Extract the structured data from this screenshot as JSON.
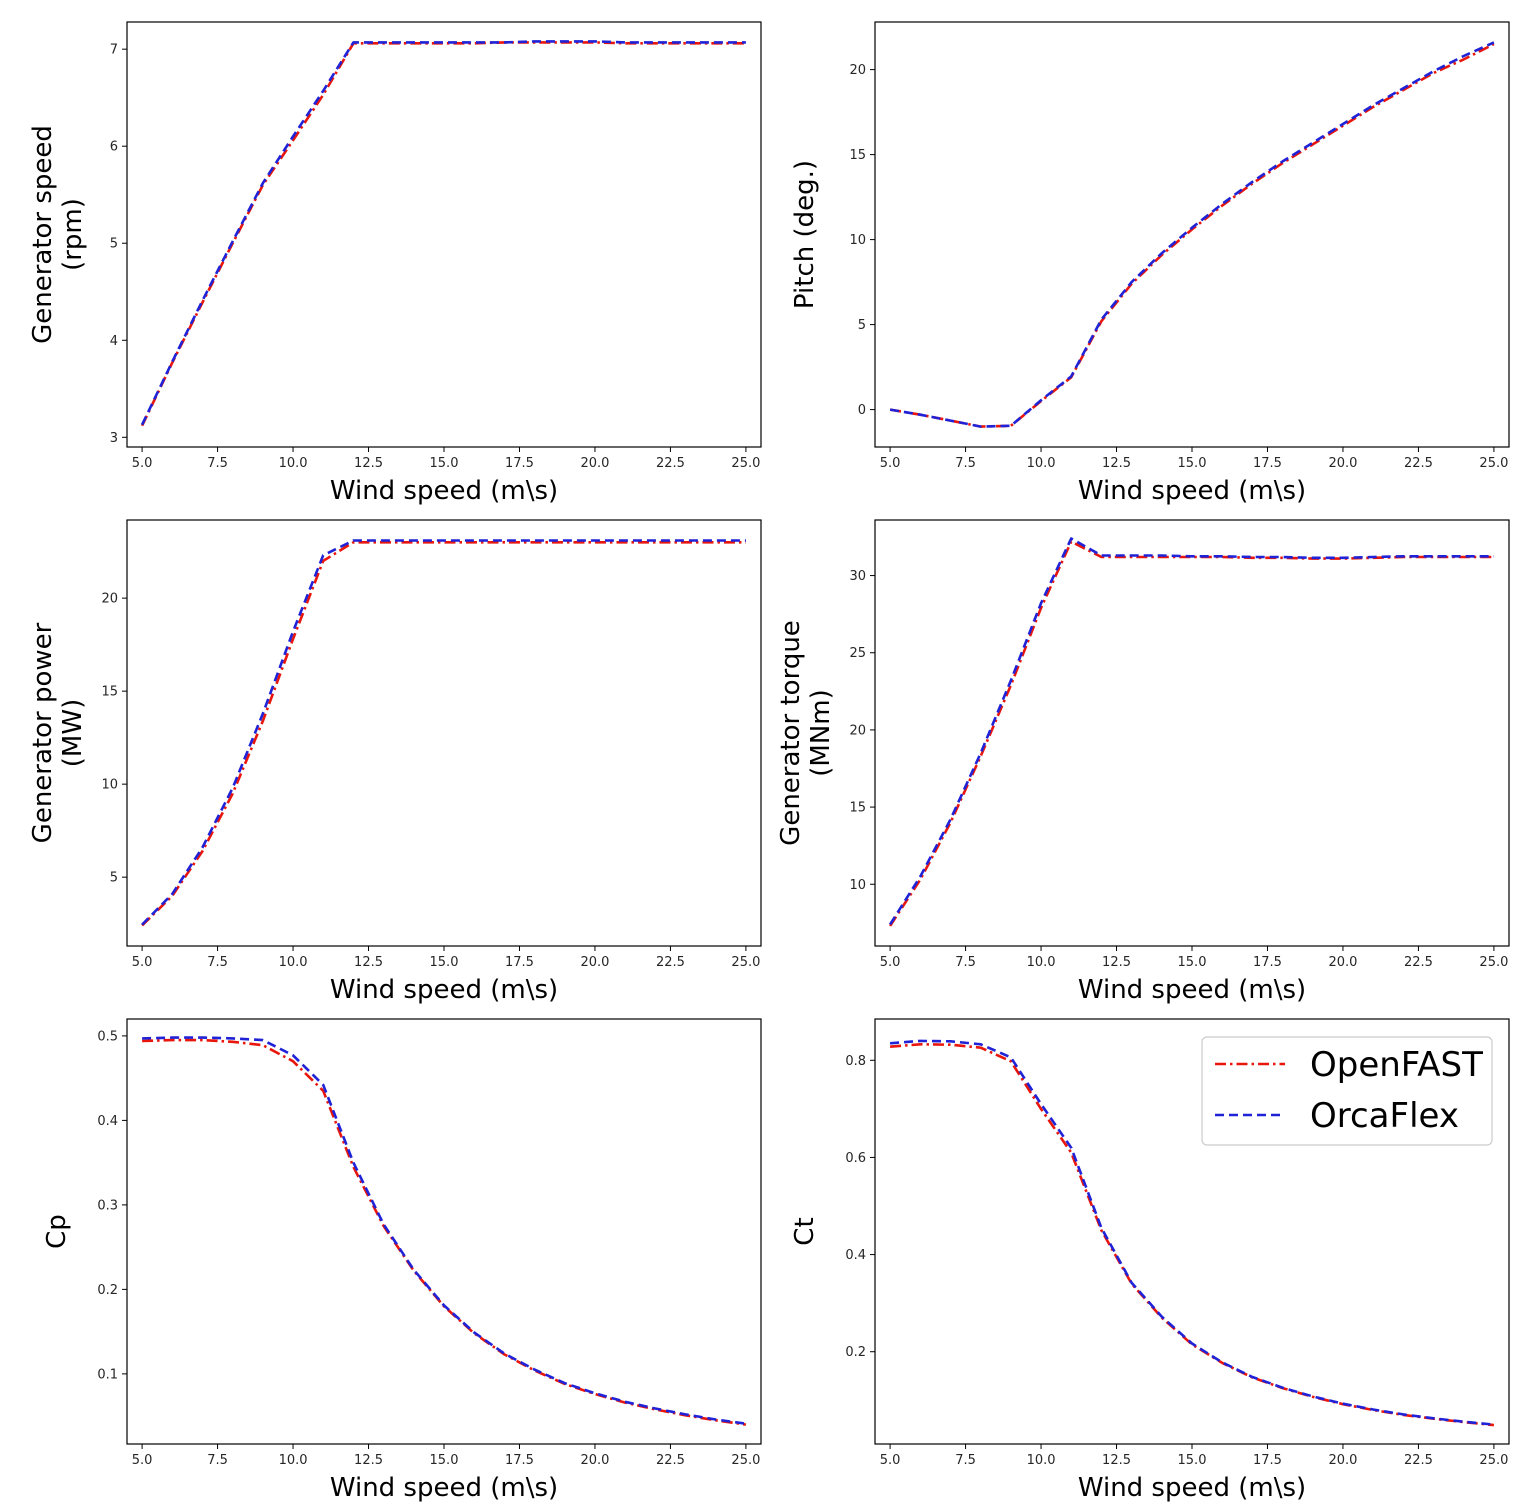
{
  "figure": {
    "legend": [
      {
        "name": "OpenFAST",
        "color": "#e8160c",
        "dash": "dashdot"
      },
      {
        "name": "OrcaFlex",
        "color": "#1f22d6",
        "dash": "dashed"
      }
    ]
  },
  "chart_data": [
    {
      "type": "line",
      "title": "",
      "xlabel": "Wind speed (m\\s)",
      "ylabel_lines": [
        "Generator speed",
        "(rpm)"
      ],
      "xlim": [
        4.5,
        25.5
      ],
      "ylim": [
        2.9,
        7.28
      ],
      "xticks": [
        "5.0",
        "7.5",
        "10.0",
        "12.5",
        "15.0",
        "17.5",
        "20.0",
        "22.5",
        "25.0"
      ],
      "xtick_values": [
        5,
        7.5,
        10,
        12.5,
        15,
        17.5,
        20,
        22.5,
        25
      ],
      "yticks": [
        "3",
        "4",
        "5",
        "6",
        "7"
      ],
      "ytick_values": [
        3,
        4,
        5,
        6,
        7
      ],
      "x": [
        5,
        6,
        7,
        8,
        9,
        10,
        11,
        12,
        13,
        14,
        15,
        16,
        17,
        18,
        19,
        20,
        21,
        22,
        23,
        24,
        25
      ],
      "series": [
        {
          "name": "OpenFAST",
          "values": [
            3.12,
            3.77,
            4.39,
            5.0,
            5.6,
            6.06,
            6.53,
            7.06,
            7.06,
            7.06,
            7.06,
            7.06,
            7.07,
            7.07,
            7.07,
            7.07,
            7.06,
            7.06,
            7.06,
            7.06,
            7.06
          ]
        },
        {
          "name": "OrcaFlex",
          "values": [
            3.13,
            3.78,
            4.41,
            5.02,
            5.62,
            6.1,
            6.57,
            7.07,
            7.07,
            7.07,
            7.07,
            7.07,
            7.07,
            7.08,
            7.08,
            7.08,
            7.07,
            7.07,
            7.07,
            7.07,
            7.07
          ]
        }
      ]
    },
    {
      "type": "line",
      "title": "",
      "xlabel": "Wind speed (m\\s)",
      "ylabel_lines": [
        "Pitch (deg.)"
      ],
      "xlim": [
        4.5,
        25.5
      ],
      "ylim": [
        -2.2,
        22.8
      ],
      "xticks": [
        "5.0",
        "7.5",
        "10.0",
        "12.5",
        "15.0",
        "17.5",
        "20.0",
        "22.5",
        "25.0"
      ],
      "xtick_values": [
        5,
        7.5,
        10,
        12.5,
        15,
        17.5,
        20,
        22.5,
        25
      ],
      "yticks": [
        "0",
        "5",
        "10",
        "15",
        "20"
      ],
      "ytick_values": [
        0,
        5,
        10,
        15,
        20
      ],
      "x": [
        5,
        6,
        7,
        8,
        9,
        10,
        11,
        12,
        13,
        14,
        15,
        16,
        17,
        18,
        19,
        20,
        21,
        22,
        23,
        24,
        25
      ],
      "series": [
        {
          "name": "OpenFAST",
          "values": [
            0,
            -0.3,
            -0.65,
            -1.0,
            -0.95,
            0.5,
            1.9,
            5.2,
            7.4,
            9.1,
            10.6,
            12.0,
            13.3,
            14.5,
            15.6,
            16.7,
            17.8,
            18.8,
            19.8,
            20.6,
            21.5
          ]
        },
        {
          "name": "OrcaFlex",
          "values": [
            0,
            -0.3,
            -0.65,
            -1.0,
            -0.95,
            0.55,
            1.95,
            5.3,
            7.5,
            9.2,
            10.7,
            12.1,
            13.4,
            14.6,
            15.7,
            16.8,
            17.9,
            18.9,
            19.9,
            20.8,
            21.6
          ]
        }
      ]
    },
    {
      "type": "line",
      "title": "",
      "xlabel": "Wind speed (m\\s)",
      "ylabel_lines": [
        "Generator power",
        "(MW)"
      ],
      "xlim": [
        4.5,
        25.5
      ],
      "ylim": [
        1.3,
        24.2
      ],
      "xticks": [
        "5.0",
        "7.5",
        "10.0",
        "12.5",
        "15.0",
        "17.5",
        "20.0",
        "22.5",
        "25.0"
      ],
      "xtick_values": [
        5,
        7.5,
        10,
        12.5,
        15,
        17.5,
        20,
        22.5,
        25
      ],
      "yticks": [
        "5",
        "10",
        "15",
        "20"
      ],
      "ytick_values": [
        5,
        10,
        15,
        20
      ],
      "x": [
        5,
        6,
        7,
        8,
        9,
        10,
        11,
        12,
        13,
        14,
        15,
        16,
        17,
        18,
        19,
        20,
        21,
        22,
        23,
        24,
        25
      ],
      "series": [
        {
          "name": "OpenFAST",
          "values": [
            2.4,
            4.0,
            6.4,
            9.5,
            13.4,
            17.8,
            22.0,
            23.0,
            23.0,
            23.0,
            23.0,
            23.0,
            23.0,
            23.0,
            23.0,
            23.0,
            23.0,
            23.0,
            23.0,
            23.0,
            23.0
          ]
        },
        {
          "name": "OrcaFlex",
          "values": [
            2.45,
            4.1,
            6.6,
            9.8,
            13.8,
            18.2,
            22.3,
            23.1,
            23.1,
            23.1,
            23.1,
            23.1,
            23.1,
            23.1,
            23.1,
            23.1,
            23.1,
            23.1,
            23.1,
            23.1,
            23.1
          ]
        }
      ]
    },
    {
      "type": "line",
      "title": "",
      "xlabel": "Wind speed (m\\s)",
      "ylabel_lines": [
        "Generator torque",
        "(MNm)"
      ],
      "xlim": [
        4.5,
        25.5
      ],
      "ylim": [
        6.0,
        33.6
      ],
      "xticks": [
        "5.0",
        "7.5",
        "10.0",
        "12.5",
        "15.0",
        "17.5",
        "20.0",
        "22.5",
        "25.0"
      ],
      "xtick_values": [
        5,
        7.5,
        10,
        12.5,
        15,
        17.5,
        20,
        22.5,
        25
      ],
      "yticks": [
        "10",
        "15",
        "20",
        "25",
        "30"
      ],
      "ytick_values": [
        10,
        15,
        20,
        25,
        30
      ],
      "x": [
        5,
        6,
        7,
        8,
        9,
        10,
        11,
        12,
        13,
        14,
        15,
        16,
        17,
        18,
        19,
        20,
        21,
        22,
        23,
        24,
        25
      ],
      "series": [
        {
          "name": "OpenFAST",
          "values": [
            7.3,
            10.3,
            14.0,
            18.3,
            22.9,
            27.9,
            32.2,
            31.2,
            31.2,
            31.2,
            31.2,
            31.2,
            31.15,
            31.15,
            31.1,
            31.1,
            31.15,
            31.2,
            31.2,
            31.2,
            31.2
          ]
        },
        {
          "name": "OrcaFlex",
          "values": [
            7.4,
            10.5,
            14.2,
            18.5,
            23.2,
            28.2,
            32.4,
            31.3,
            31.3,
            31.3,
            31.25,
            31.25,
            31.2,
            31.2,
            31.15,
            31.15,
            31.2,
            31.25,
            31.25,
            31.25,
            31.25
          ]
        }
      ]
    },
    {
      "type": "line",
      "title": "",
      "xlabel": "Wind speed (m\\s)",
      "ylabel_lines": [
        "Cp"
      ],
      "xlim": [
        4.5,
        25.5
      ],
      "ylim": [
        0.017,
        0.52
      ],
      "xticks": [
        "5.0",
        "7.5",
        "10.0",
        "12.5",
        "15.0",
        "17.5",
        "20.0",
        "22.5",
        "25.0"
      ],
      "xtick_values": [
        5,
        7.5,
        10,
        12.5,
        15,
        17.5,
        20,
        22.5,
        25
      ],
      "yticks": [
        "0.1",
        "0.2",
        "0.3",
        "0.4",
        "0.5"
      ],
      "ytick_values": [
        0.1,
        0.2,
        0.3,
        0.4,
        0.5
      ],
      "x": [
        5,
        6,
        7,
        8,
        9,
        10,
        11,
        12,
        13,
        14,
        15,
        16,
        17,
        18,
        19,
        20,
        21,
        22,
        23,
        24,
        25
      ],
      "series": [
        {
          "name": "OpenFAST",
          "values": [
            0.494,
            0.495,
            0.495,
            0.493,
            0.489,
            0.47,
            0.435,
            0.345,
            0.275,
            0.222,
            0.18,
            0.148,
            0.123,
            0.104,
            0.088,
            0.076,
            0.066,
            0.058,
            0.051,
            0.045,
            0.04
          ]
        },
        {
          "name": "OrcaFlex",
          "values": [
            0.497,
            0.498,
            0.498,
            0.497,
            0.495,
            0.477,
            0.442,
            0.35,
            0.277,
            0.223,
            0.181,
            0.149,
            0.124,
            0.105,
            0.089,
            0.077,
            0.067,
            0.059,
            0.052,
            0.046,
            0.041
          ]
        }
      ]
    },
    {
      "type": "line",
      "title": "",
      "xlabel": "Wind speed (m\\s)",
      "ylabel_lines": [
        "Ct"
      ],
      "xlim": [
        4.5,
        25.5
      ],
      "ylim": [
        0.01,
        0.885
      ],
      "xticks": [
        "5.0",
        "7.5",
        "10.0",
        "12.5",
        "15.0",
        "17.5",
        "20.0",
        "22.5",
        "25.0"
      ],
      "xtick_values": [
        5,
        7.5,
        10,
        12.5,
        15,
        17.5,
        20,
        22.5,
        25
      ],
      "yticks": [
        "0.2",
        "0.4",
        "0.6",
        "0.8"
      ],
      "ytick_values": [
        0.2,
        0.4,
        0.6,
        0.8
      ],
      "x": [
        5,
        6,
        7,
        8,
        9,
        10,
        11,
        12,
        13,
        14,
        15,
        16,
        17,
        18,
        19,
        20,
        21,
        22,
        23,
        24,
        25
      ],
      "series": [
        {
          "name": "OpenFAST",
          "values": [
            0.828,
            0.833,
            0.832,
            0.826,
            0.798,
            0.7,
            0.61,
            0.45,
            0.34,
            0.27,
            0.215,
            0.177,
            0.147,
            0.125,
            0.107,
            0.092,
            0.08,
            0.07,
            0.062,
            0.055,
            0.049
          ]
        },
        {
          "name": "OrcaFlex",
          "values": [
            0.835,
            0.84,
            0.839,
            0.833,
            0.806,
            0.71,
            0.62,
            0.455,
            0.342,
            0.272,
            0.217,
            0.178,
            0.148,
            0.126,
            0.108,
            0.093,
            0.081,
            0.071,
            0.063,
            0.056,
            0.05
          ]
        }
      ]
    }
  ]
}
